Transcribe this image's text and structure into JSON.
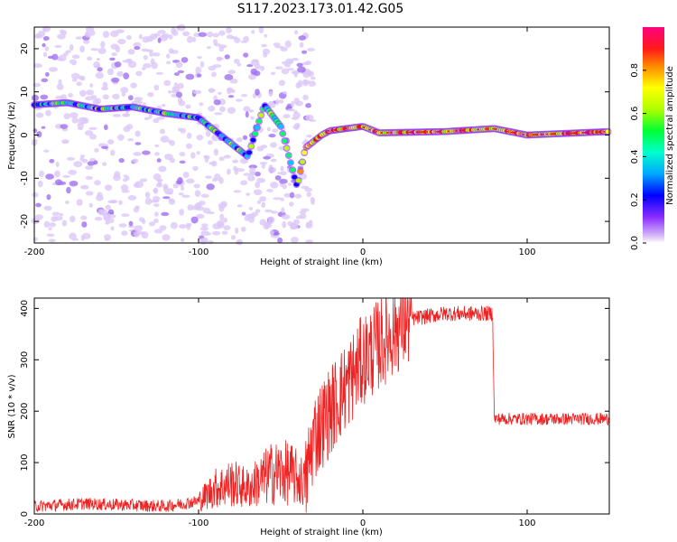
{
  "figure": {
    "title": "S117.2023.173.01.42.G05"
  },
  "chart_data": [
    {
      "type": "heatmap",
      "xlabel": "Height of straight line (km)",
      "ylabel": "Frequency (Hz)",
      "xlim": [
        -200,
        150
      ],
      "ylim": [
        -25,
        25
      ],
      "xticks": [
        "-200",
        "-100",
        "0",
        "100"
      ],
      "yticks": [
        "-20",
        "-10",
        "0",
        "10",
        "20"
      ],
      "colorbar": {
        "label": "Normalized spectral amplitude",
        "range": [
          0,
          1
        ],
        "ticks": [
          "0.0",
          "0.2",
          "0.4",
          "0.6",
          "0.8"
        ],
        "colormap": [
          "#ffffff",
          "#c9a8f2",
          "#7a00ff",
          "#0000ff",
          "#00c8ff",
          "#00ff66",
          "#b4ff00",
          "#ffff00",
          "#ff8c00",
          "#ff0000",
          "#ff0080"
        ]
      },
      "ridge": [
        {
          "x": -200,
          "y": 7
        },
        {
          "x": -180,
          "y": 7.5
        },
        {
          "x": -160,
          "y": 6
        },
        {
          "x": -140,
          "y": 6.5
        },
        {
          "x": -120,
          "y": 5
        },
        {
          "x": -100,
          "y": 4
        },
        {
          "x": -90,
          "y": 1
        },
        {
          "x": -80,
          "y": -2
        },
        {
          "x": -70,
          "y": -5
        },
        {
          "x": -60,
          "y": 7
        },
        {
          "x": -50,
          "y": 2
        },
        {
          "x": -40,
          "y": -12
        },
        {
          "x": -35,
          "y": -3
        },
        {
          "x": -25,
          "y": 0
        },
        {
          "x": -20,
          "y": 1
        },
        {
          "x": 0,
          "y": 2
        },
        {
          "x": 10,
          "y": 0.5
        },
        {
          "x": 50,
          "y": 0.8
        },
        {
          "x": 80,
          "y": 1.5
        },
        {
          "x": 100,
          "y": 0
        },
        {
          "x": 150,
          "y": 0.8
        }
      ],
      "grid": false
    },
    {
      "type": "line",
      "xlabel": "Height of straight line (km)",
      "ylabel": "SNR (10 * v/v)",
      "xlim": [
        -200,
        150
      ],
      "ylim": [
        0,
        420
      ],
      "xticks": [
        "-200",
        "-100",
        "0",
        "100"
      ],
      "yticks": [
        "0",
        "100",
        "200",
        "300",
        "400"
      ],
      "series": [
        {
          "color": "#ee2222",
          "envelope": [
            {
              "x": -200,
              "y": 15
            },
            {
              "x": -170,
              "y": 20
            },
            {
              "x": -120,
              "y": 15
            },
            {
              "x": -100,
              "y": 25
            },
            {
              "x": -90,
              "y": 50
            },
            {
              "x": -80,
              "y": 60
            },
            {
              "x": -70,
              "y": 50
            },
            {
              "x": -55,
              "y": 80
            },
            {
              "x": -45,
              "y": 80
            },
            {
              "x": -35,
              "y": 60
            },
            {
              "x": -30,
              "y": 150
            },
            {
              "x": -20,
              "y": 200
            },
            {
              "x": -10,
              "y": 250
            },
            {
              "x": 0,
              "y": 300
            },
            {
              "x": 10,
              "y": 330
            },
            {
              "x": 20,
              "y": 360
            },
            {
              "x": 30,
              "y": 380
            },
            {
              "x": 50,
              "y": 390
            },
            {
              "x": 79,
              "y": 390
            },
            {
              "x": 80,
              "y": 185
            },
            {
              "x": 150,
              "y": 185
            }
          ]
        }
      ],
      "grid": false
    }
  ]
}
